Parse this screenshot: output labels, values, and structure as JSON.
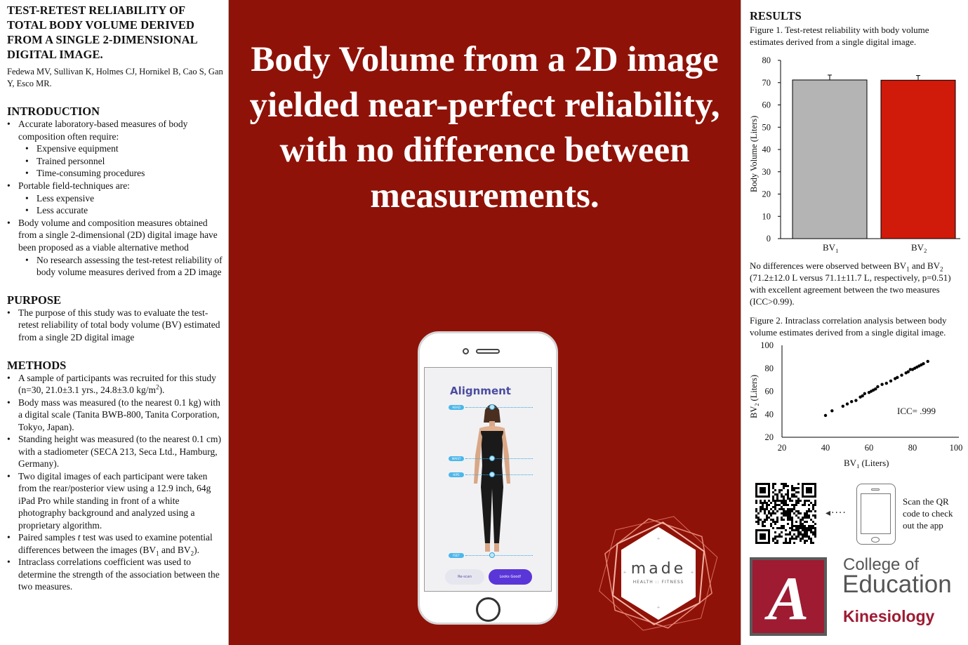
{
  "left": {
    "title": "TEST-RETEST RELIABILITY OF TOTAL BODY VOLUME DERIVED FROM A SINGLE 2-DIMENSIONAL DIGITAL IMAGE.",
    "authors": "Fedewa MV, Sullivan K, Holmes CJ, Hornikel B, Cao S, Gan Y, Esco MR.",
    "intro_heading": "INTRODUCTION",
    "intro_b1": "Accurate laboratory-based measures of body composition often require:",
    "intro_b1_sub": [
      "Expensive equipment",
      "Trained personnel",
      "Time-consuming procedures"
    ],
    "intro_b2": "Portable field-techniques are:",
    "intro_b2_sub": [
      "Less expensive",
      "Less accurate"
    ],
    "intro_b3": "Body volume and composition measures obtained from a single 2-dimensional (2D) digital image have been proposed as a viable alternative method",
    "intro_b3_sub": [
      "No research assessing the test-retest reliability of body volume measures derived from a 2D image"
    ],
    "purpose_heading": "PURPOSE",
    "purpose_b1": "The purpose of this study was to evaluate the test-retest reliability of total body volume (BV) estimated from a single 2D digital image",
    "methods_heading": "METHODS",
    "methods_b1a": "A sample of participants was recruited for this study (n=30, 21.0±3.1 yrs., 24.8±3.0 kg/m",
    "methods_b1_sup": "2",
    "methods_b1b": ").",
    "methods_b2": "Body mass was measured (to the nearest 0.1 kg) with a digital scale (Tanita BWB-800, Tanita Corporation, Tokyo, Japan).",
    "methods_b3": "Standing height was measured (to the nearest 0.1 cm) with a stadiometer (SECA 213, Seca Ltd., Hamburg, Germany).",
    "methods_b4": "Two digital images of each participant were taken from the rear/posterior view using a 12.9 inch, 64g iPad Pro while standing in front of a white photography background and analyzed using a proprietary algorithm.",
    "methods_b5a": "Paired samples ",
    "methods_b5_t": "t",
    "methods_b5b": " test was used to examine potential differences between the images (BV",
    "methods_b5_s1": "1",
    "methods_b5c": " and BV",
    "methods_b5_s2": "2",
    "methods_b5d": ").",
    "methods_b6": "Intraclass correlations coefficient was used to determine the strength of the association between the two measures."
  },
  "center": {
    "headline": "Body Volume from a 2D image yielded near-perfect reliability, with no difference between measurements.",
    "app_title": "Alignment",
    "guide_labels": [
      "HEAD",
      "WAIST",
      "HIPS",
      "FEET"
    ],
    "btn_rescan": "Re-scan",
    "btn_good": "Looks Good!",
    "logo_made": "made",
    "logo_sub": "HEALTH :: FITNESS",
    "colors": {
      "background": "#8f1208",
      "accent": "#5a36d8"
    }
  },
  "right": {
    "results_heading": "RESULTS",
    "fig1_caption": "Figure 1. Test-retest reliability with body volume estimates derived from a single digital image.",
    "results_text_a": "No differences were observed between BV",
    "results_text_s1": "1",
    "results_text_b": " and BV",
    "results_text_s2": "2",
    "results_text_c": " (71.2±12.0 L versus 71.1±11.7 L, respectively, p=0.51) with excellent agreement between the two measures (ICC>0.99).",
    "fig2_caption": "Figure 2. Intraclass correlation analysis between body volume estimates derived from a single digital image.",
    "qr_text": "Scan the QR code to check out the app",
    "college_line1": "College of",
    "college_line2": "Education",
    "college_line3": "Kinesiology",
    "colors": {
      "bv1": "#b4b4b4",
      "bv2": "#d01a0a",
      "ua_crimson": "#9e1b32"
    }
  },
  "chart_data": [
    {
      "type": "bar",
      "categories": [
        "BV1",
        "BV2"
      ],
      "values": [
        71.2,
        71.1
      ],
      "errors": [
        2.2,
        2.1
      ],
      "ylabel": "Body Volume (Liters)",
      "ylim": [
        0,
        80
      ],
      "yticks": [
        0,
        10,
        20,
        30,
        40,
        50,
        60,
        70,
        80
      ]
    },
    {
      "type": "scatter",
      "xlabel": "BV1 (Liters)",
      "ylabel": "BV2 (Liters)",
      "xlim": [
        20,
        100
      ],
      "ylim": [
        20,
        100
      ],
      "xticks": [
        20,
        40,
        60,
        80,
        100
      ],
      "yticks": [
        20,
        40,
        60,
        80,
        100
      ],
      "annotation": "ICC= .999",
      "points": [
        [
          40,
          39
        ],
        [
          43,
          43
        ],
        [
          48,
          47
        ],
        [
          50,
          49
        ],
        [
          52,
          51
        ],
        [
          54,
          52
        ],
        [
          56,
          55
        ],
        [
          57,
          56
        ],
        [
          58,
          58
        ],
        [
          60,
          59
        ],
        [
          61,
          60
        ],
        [
          62,
          61
        ],
        [
          63,
          62
        ],
        [
          64,
          64
        ],
        [
          66,
          66
        ],
        [
          68,
          67
        ],
        [
          70,
          69
        ],
        [
          72,
          71
        ],
        [
          73,
          72
        ],
        [
          75,
          74
        ],
        [
          77,
          76
        ],
        [
          78,
          77
        ],
        [
          79,
          79
        ],
        [
          80,
          79
        ],
        [
          81,
          80
        ],
        [
          82,
          81
        ],
        [
          83,
          82
        ],
        [
          84,
          83
        ],
        [
          85,
          84
        ],
        [
          87,
          86
        ]
      ]
    }
  ]
}
